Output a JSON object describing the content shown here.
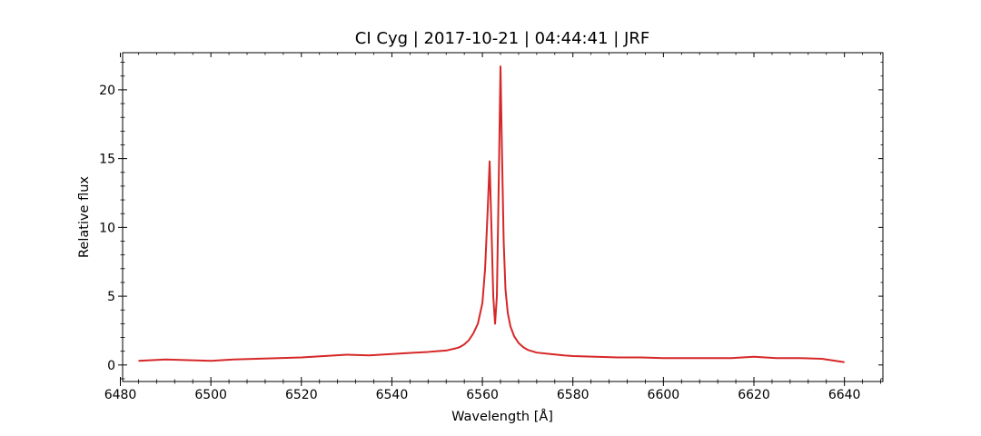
{
  "chart_data": {
    "type": "line",
    "title": "CI Cyg | 2017-10-21 | 04:44:41 | JRF",
    "xlabel": "Wavelength [Å]",
    "ylabel": "Relative flux",
    "xlim": [
      6480.5,
      6648.5
    ],
    "ylim": [
      -1.2,
      22.7
    ],
    "xticks": [
      6480,
      6500,
      6520,
      6540,
      6560,
      6580,
      6600,
      6620,
      6640
    ],
    "yticks": [
      0,
      5,
      10,
      15,
      20
    ],
    "grid": false,
    "series_color": "#d62728",
    "series": [
      {
        "x": [
          6484.0,
          6490,
          6495,
          6500,
          6505,
          6510,
          6515,
          6520,
          6525,
          6530,
          6535,
          6540,
          6545,
          6548,
          6550,
          6552,
          6554,
          6555,
          6556,
          6557,
          6558,
          6559,
          6560,
          6560.6,
          6561.2,
          6561.6,
          6562.0,
          6562.4,
          6562.8,
          6563.2,
          6563.6,
          6564.0,
          6564.3,
          6564.7,
          6565.1,
          6565.6,
          6566.2,
          6567,
          6568,
          6569,
          6570,
          6572,
          6575,
          6578,
          6580,
          6585,
          6590,
          6595,
          6600,
          6605,
          6610,
          6615,
          6620,
          6625,
          6630,
          6635,
          6640.0
        ],
        "y": [
          0.3,
          0.4,
          0.35,
          0.3,
          0.4,
          0.45,
          0.5,
          0.55,
          0.65,
          0.75,
          0.7,
          0.8,
          0.9,
          0.95,
          1.0,
          1.05,
          1.2,
          1.3,
          1.5,
          1.8,
          2.3,
          3.0,
          4.5,
          7.0,
          11.5,
          14.8,
          10.0,
          5.0,
          3.0,
          5.0,
          13.0,
          21.7,
          16.0,
          9.0,
          5.5,
          3.8,
          2.8,
          2.1,
          1.6,
          1.3,
          1.1,
          0.9,
          0.8,
          0.7,
          0.65,
          0.6,
          0.55,
          0.55,
          0.5,
          0.5,
          0.5,
          0.5,
          0.6,
          0.5,
          0.5,
          0.45,
          0.2
        ]
      }
    ]
  }
}
